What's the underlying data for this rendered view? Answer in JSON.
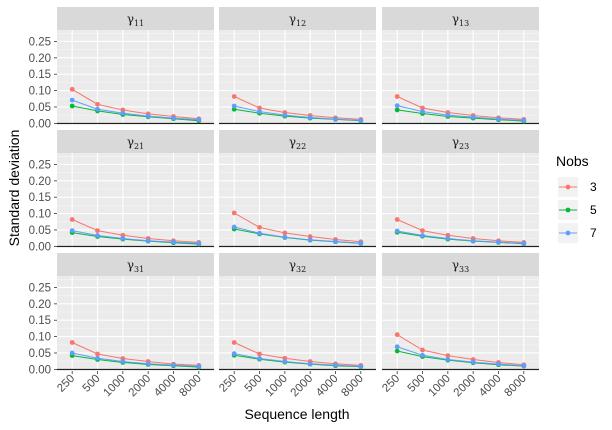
{
  "chart_data": {
    "type": "line",
    "layout": "facet-grid-3x3",
    "xlabel": "Sequence length",
    "ylabel": "Standard deviation",
    "x": [
      "250",
      "500",
      "1000",
      "2000",
      "4000",
      "8000"
    ],
    "y_ticks": [
      "0.00",
      "0.05",
      "0.10",
      "0.15",
      "0.20",
      "0.25"
    ],
    "ylim": [
      -0.005,
      0.285
    ],
    "grid": true,
    "legend": {
      "title": "Nobs",
      "position": "right",
      "entries": [
        {
          "label": "3",
          "color": "#f8766d"
        },
        {
          "label": "5",
          "color": "#00ba38"
        },
        {
          "label": "7",
          "color": "#619cff"
        }
      ]
    },
    "panels": [
      {
        "base": "γ",
        "sub": "11",
        "series": [
          {
            "name": "3",
            "values": [
              0.104,
              0.058,
              0.041,
              0.029,
              0.021,
              0.014
            ]
          },
          {
            "name": "5",
            "values": [
              0.053,
              0.038,
              0.027,
              0.02,
              0.014,
              0.008
            ]
          },
          {
            "name": "7",
            "values": [
              0.071,
              0.043,
              0.031,
              0.022,
              0.016,
              0.011
            ]
          }
        ]
      },
      {
        "base": "γ",
        "sub": "12",
        "series": [
          {
            "name": "3",
            "values": [
              0.082,
              0.047,
              0.033,
              0.024,
              0.017,
              0.012
            ]
          },
          {
            "name": "5",
            "values": [
              0.043,
              0.031,
              0.022,
              0.016,
              0.012,
              0.008
            ]
          },
          {
            "name": "7",
            "values": [
              0.053,
              0.036,
              0.025,
              0.018,
              0.013,
              0.009
            ]
          }
        ]
      },
      {
        "base": "γ",
        "sub": "13",
        "series": [
          {
            "name": "3",
            "values": [
              0.082,
              0.047,
              0.033,
              0.024,
              0.017,
              0.012
            ]
          },
          {
            "name": "5",
            "values": [
              0.041,
              0.03,
              0.021,
              0.016,
              0.011,
              0.007
            ]
          },
          {
            "name": "7",
            "values": [
              0.054,
              0.036,
              0.025,
              0.019,
              0.013,
              0.009
            ]
          }
        ]
      },
      {
        "base": "γ",
        "sub": "21",
        "series": [
          {
            "name": "3",
            "values": [
              0.082,
              0.048,
              0.034,
              0.024,
              0.017,
              0.012
            ]
          },
          {
            "name": "5",
            "values": [
              0.042,
              0.03,
              0.022,
              0.016,
              0.011,
              0.007
            ]
          },
          {
            "name": "7",
            "values": [
              0.048,
              0.033,
              0.024,
              0.017,
              0.013,
              0.009
            ]
          }
        ]
      },
      {
        "base": "γ",
        "sub": "22",
        "series": [
          {
            "name": "3",
            "values": [
              0.102,
              0.058,
              0.041,
              0.03,
              0.021,
              0.014
            ]
          },
          {
            "name": "5",
            "values": [
              0.053,
              0.038,
              0.027,
              0.019,
              0.014,
              0.009
            ]
          },
          {
            "name": "7",
            "values": [
              0.059,
              0.04,
              0.028,
              0.02,
              0.015,
              0.01
            ]
          }
        ]
      },
      {
        "base": "γ",
        "sub": "23",
        "series": [
          {
            "name": "3",
            "values": [
              0.082,
              0.048,
              0.034,
              0.024,
              0.017,
              0.012
            ]
          },
          {
            "name": "5",
            "values": [
              0.043,
              0.031,
              0.022,
              0.016,
              0.012,
              0.008
            ]
          },
          {
            "name": "7",
            "values": [
              0.047,
              0.033,
              0.024,
              0.017,
              0.013,
              0.009
            ]
          }
        ]
      },
      {
        "base": "γ",
        "sub": "31",
        "series": [
          {
            "name": "3",
            "values": [
              0.082,
              0.047,
              0.033,
              0.024,
              0.016,
              0.012
            ]
          },
          {
            "name": "5",
            "values": [
              0.042,
              0.03,
              0.021,
              0.015,
              0.011,
              0.007
            ]
          },
          {
            "name": "7",
            "values": [
              0.05,
              0.034,
              0.024,
              0.017,
              0.013,
              0.009
            ]
          }
        ]
      },
      {
        "base": "γ",
        "sub": "32",
        "series": [
          {
            "name": "3",
            "values": [
              0.082,
              0.047,
              0.034,
              0.024,
              0.017,
              0.012
            ]
          },
          {
            "name": "5",
            "values": [
              0.043,
              0.031,
              0.022,
              0.016,
              0.011,
              0.008
            ]
          },
          {
            "name": "7",
            "values": [
              0.048,
              0.033,
              0.024,
              0.017,
              0.013,
              0.009
            ]
          }
        ]
      },
      {
        "base": "γ",
        "sub": "33",
        "series": [
          {
            "name": "3",
            "values": [
              0.106,
              0.059,
              0.042,
              0.03,
              0.021,
              0.014
            ]
          },
          {
            "name": "5",
            "values": [
              0.056,
              0.039,
              0.028,
              0.02,
              0.014,
              0.01
            ]
          },
          {
            "name": "7",
            "values": [
              0.069,
              0.043,
              0.03,
              0.022,
              0.016,
              0.011
            ]
          }
        ]
      }
    ]
  }
}
